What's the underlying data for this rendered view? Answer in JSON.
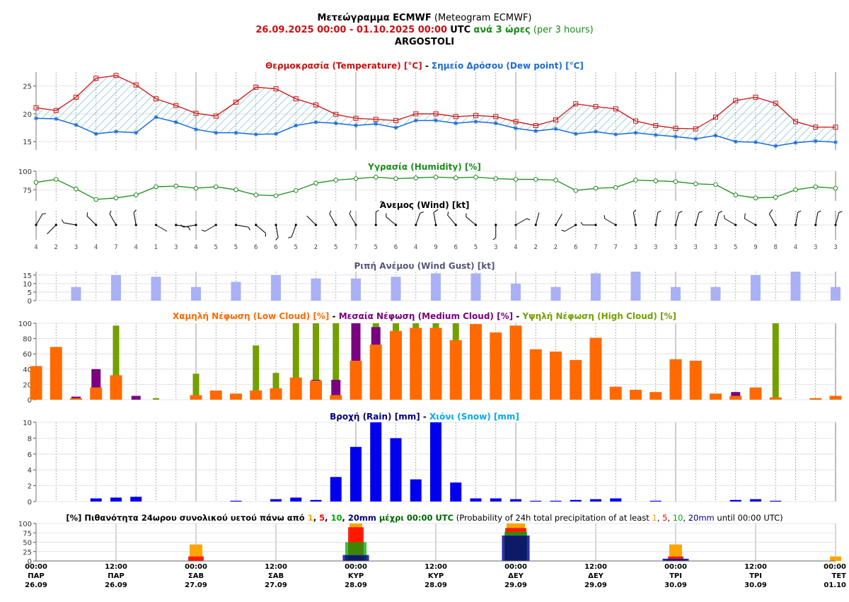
{
  "header": {
    "title_greek": "Μετεώγραμμα ECMWF",
    "title_english": "(Meteogram ECMWF)",
    "date_range": "26.09.2025 00:00 - 01.10.2025 00:00",
    "utc": "UTC",
    "interval_greek": "ανά 3 ώρες",
    "interval_english": "(per 3 hours)",
    "location": "ARGOSTOLI"
  },
  "colors": {
    "temperature": "#cc1111",
    "dew_point": "#1a6bd6",
    "humidity": "#1a8c1a",
    "gust": "#aab0f5",
    "low_cloud": "#ff6a00",
    "medium_cloud": "#7a0080",
    "high_cloud": "#73a000",
    "rain": "#0000ee",
    "snow": "#00aaee",
    "p1": "#ffa500",
    "p5": "#ff0000",
    "p10": "#00aa00",
    "p20": "#000080"
  },
  "chart_data": [
    {
      "type": "line",
      "panel": "temperature",
      "title_parts": [
        "Θερμοκρασία (Temperature) [°C]",
        " - ",
        "Σημείο Δρόσου (Dew point) [°C]"
      ],
      "ylim": [
        13.5,
        27.5
      ],
      "yticks": [
        15,
        20,
        25
      ],
      "series": [
        {
          "name": "Θερμοκρασία (Temperature) [°C]",
          "values": [
            21.1,
            20.6,
            23.0,
            26.4,
            26.9,
            25.2,
            22.7,
            21.5,
            20.1,
            19.6,
            22.1,
            24.8,
            24.5,
            22.7,
            21.6,
            19.9,
            19.2,
            19.0,
            18.8,
            20.0,
            20.0,
            19.5,
            19.7,
            19.5,
            18.6,
            17.9,
            18.9,
            21.8,
            21.3,
            20.9,
            18.7,
            17.9,
            17.4,
            17.3,
            19.4,
            22.4,
            23.0,
            21.9,
            18.6,
            17.6,
            17.6
          ]
        },
        {
          "name": "Σημείο Δρόσου (Dew point) [°C]",
          "values": [
            19.2,
            19.1,
            18.0,
            16.4,
            16.8,
            16.6,
            19.4,
            18.5,
            17.2,
            16.6,
            16.6,
            16.3,
            16.4,
            17.9,
            18.5,
            18.3,
            17.9,
            18.2,
            17.5,
            18.8,
            18.8,
            18.3,
            18.6,
            18.3,
            17.4,
            16.9,
            17.3,
            16.4,
            16.8,
            16.3,
            16.6,
            16.2,
            15.9,
            15.5,
            16.1,
            15.0,
            14.9,
            14.2,
            14.8,
            15.1,
            14.9
          ]
        }
      ]
    },
    {
      "type": "line",
      "panel": "humidity",
      "title": "Υγρασία (Humidity) [%]",
      "ylim": [
        60,
        100
      ],
      "yticks": [
        75,
        100
      ],
      "values": [
        85,
        89,
        76,
        62,
        64,
        68,
        79,
        80,
        77,
        79,
        75,
        68,
        67,
        74,
        84,
        88,
        90,
        92,
        90,
        91,
        92,
        91,
        92,
        90,
        89,
        89,
        88,
        74,
        77,
        78,
        88,
        87,
        86,
        83,
        82,
        68,
        64,
        65,
        75,
        79,
        77
      ]
    },
    {
      "type": "wind_barbs",
      "panel": "wind",
      "title": "Άνεμος (Wind) [kt]",
      "speed_labels": [
        "4",
        "2",
        "3",
        "4",
        "7",
        "4",
        "1",
        "3",
        "4",
        "5",
        "5",
        "6",
        "6",
        "5",
        "2",
        "5",
        "7",
        "5",
        "6",
        "4",
        "9",
        "6",
        "5",
        "3",
        "4",
        "2",
        "2",
        "6",
        "7",
        "7",
        "3",
        "3",
        "3",
        "3",
        "3",
        "5",
        "9",
        "8",
        "4",
        "3",
        "3"
      ],
      "directions_deg": [
        30,
        225,
        280,
        315,
        330,
        350,
        120,
        100,
        260,
        240,
        100,
        130,
        170,
        200,
        315,
        330,
        330,
        0,
        310,
        20,
        350,
        320,
        310,
        180,
        60,
        15,
        30,
        240,
        270,
        300,
        350,
        10,
        15,
        15,
        15,
        300,
        300,
        330,
        10,
        10,
        15
      ]
    },
    {
      "type": "bar",
      "panel": "gust",
      "title": "Ριπή Ανέμου (Wind Gust) [kt]",
      "ylim": [
        0,
        17
      ],
      "yticks": [
        0,
        5,
        10,
        15
      ],
      "bar_indices": [
        2,
        4,
        6,
        8,
        10,
        12,
        14,
        16,
        18,
        20,
        22,
        24,
        26,
        28,
        30,
        32,
        34,
        36,
        38,
        40
      ],
      "values": [
        8,
        15,
        14,
        8,
        11,
        15,
        13,
        13,
        14,
        16,
        16,
        10,
        8,
        16,
        17,
        8,
        8,
        15,
        17,
        8
      ]
    },
    {
      "type": "bar",
      "panel": "cloud",
      "title_parts": [
        "Χαμηλή Νέφωση (Low Cloud) [%]",
        " - ",
        "Μεσαία Νέφωση (Medium Cloud) [%]",
        " - ",
        "Υψηλή Νέφωση (High Cloud) [%]"
      ],
      "ylim": [
        0,
        100
      ],
      "yticks": [
        0,
        20,
        40,
        60,
        80,
        100
      ],
      "series": [
        {
          "name": "Υψηλή Νέφωση (High Cloud) [%]",
          "values": [
            0,
            0,
            0,
            0,
            97,
            0,
            2,
            0,
            34,
            0,
            0,
            71,
            35,
            100,
            100,
            100,
            0,
            100,
            100,
            100,
            100,
            100,
            0,
            0,
            0,
            0,
            0,
            0,
            0,
            0,
            0,
            0,
            0,
            0,
            0,
            0,
            0,
            100,
            0,
            0,
            0
          ]
        },
        {
          "name": "Μεσαία Νέφωση (Medium Cloud) [%]",
          "values": [
            0,
            0,
            4,
            40,
            0,
            5,
            0,
            0,
            0,
            0,
            0,
            0,
            0,
            0,
            26,
            26,
            100,
            95,
            0,
            0,
            0,
            0,
            0,
            0,
            0,
            0,
            0,
            0,
            0,
            0,
            0,
            0,
            0,
            0,
            0,
            10,
            0,
            2,
            0,
            0,
            0
          ]
        },
        {
          "name": "Χαμηλή Νέφωση (Low Cloud) [%]",
          "values": [
            44,
            69,
            2,
            16,
            32,
            0,
            0,
            0,
            6,
            12,
            8,
            12,
            15,
            29,
            25,
            6,
            51,
            72,
            90,
            94,
            94,
            78,
            99,
            88,
            97,
            66,
            63,
            52,
            81,
            17,
            13,
            10,
            53,
            51,
            8,
            5,
            16,
            3,
            0,
            2,
            5
          ]
        }
      ]
    },
    {
      "type": "bar",
      "panel": "rain",
      "title_parts": [
        "Βροχή (Rain) [mm]",
        " - ",
        "Χιόνι (Snow) [mm]"
      ],
      "ylim": [
        0,
        10
      ],
      "yticks": [
        0,
        2,
        4,
        6,
        8,
        10
      ],
      "series": [
        {
          "name": "Βροχή (Rain) [mm]",
          "values": [
            0,
            0,
            0,
            0.4,
            0.5,
            0.6,
            0,
            0,
            0,
            0,
            0.1,
            0,
            0.3,
            0.5,
            0.2,
            3.1,
            6.9,
            10,
            8,
            2.8,
            10,
            2.4,
            0.4,
            0.4,
            0.3,
            0.1,
            0.1,
            0.2,
            0.3,
            0.4,
            0,
            0.1,
            0,
            0,
            0,
            0.2,
            0.3,
            0.1,
            0,
            0,
            0
          ]
        },
        {
          "name": "Χιόνι (Snow) [mm]",
          "values": []
        }
      ]
    },
    {
      "type": "bar",
      "panel": "probability",
      "title_parts": [
        {
          "text": "[%] Πιθανότητα 24ωρου συνολικού υετού πάνω από ",
          "color": "#000000",
          "bold": true
        },
        {
          "text": "1",
          "color": "#ffa500",
          "bold": true
        },
        {
          "text": ", ",
          "color": "#000000",
          "bold": true
        },
        {
          "text": "5",
          "color": "#ff0000",
          "bold": true
        },
        {
          "text": ", ",
          "color": "#000000",
          "bold": true
        },
        {
          "text": "10",
          "color": "#00aa00",
          "bold": true
        },
        {
          "text": ", ",
          "color": "#000000",
          "bold": true
        },
        {
          "text": "20mm",
          "color": "#000080",
          "bold": true
        },
        {
          "text": " μέχρι 00:00 UTC",
          "color": "#006600",
          "bold": true
        },
        {
          "text": " (Probability of 24h total precipitation of at least ",
          "color": "#000000",
          "bold": false
        },
        {
          "text": "1",
          "color": "#ffa500",
          "bold": false
        },
        {
          "text": ", ",
          "color": "#000000",
          "bold": false
        },
        {
          "text": "5",
          "color": "#ff0000",
          "bold": false
        },
        {
          "text": ", ",
          "color": "#000000",
          "bold": false
        },
        {
          "text": "10",
          "color": "#00aa00",
          "bold": false
        },
        {
          "text": ", ",
          "color": "#000000",
          "bold": false
        },
        {
          "text": "20mm",
          "color": "#000080",
          "bold": false
        },
        {
          "text": " until 00:00 UTC)",
          "color": "#000000",
          "bold": false
        }
      ],
      "ylim": [
        0,
        100
      ],
      "yticks": [
        0,
        25,
        50,
        75,
        100
      ],
      "categories": [
        "27.09",
        "28.09",
        "29.09",
        "30.09",
        "01.10"
      ],
      "series": [
        {
          "name": "1",
          "values": [
            44,
            100,
            100,
            44,
            12
          ]
        },
        {
          "name": "5",
          "values": [
            12,
            90,
            88,
            12,
            0
          ]
        },
        {
          "name": "10",
          "values": [
            0,
            50,
            78,
            5,
            0
          ]
        },
        {
          "name": "20mm",
          "values": [
            0,
            15,
            67,
            5,
            0
          ]
        }
      ]
    }
  ],
  "time_axis": [
    {
      "time": "00:00",
      "day": "ΠΑΡ",
      "date": "26.09"
    },
    {
      "time": "12:00",
      "day": "ΠΑΡ",
      "date": "26.09"
    },
    {
      "time": "00:00",
      "day": "ΣΑΒ",
      "date": "27.09"
    },
    {
      "time": "12:00",
      "day": "ΣΑΒ",
      "date": "27.09"
    },
    {
      "time": "00:00",
      "day": "ΚΥΡ",
      "date": "28.09"
    },
    {
      "time": "12:00",
      "day": "ΚΥΡ",
      "date": "28.09"
    },
    {
      "time": "00:00",
      "day": "ΔΕΥ",
      "date": "29.09"
    },
    {
      "time": "12:00",
      "day": "ΔΕΥ",
      "date": "29.09"
    },
    {
      "time": "00:00",
      "day": "ΤΡΙ",
      "date": "30.09"
    },
    {
      "time": "12:00",
      "day": "ΤΡΙ",
      "date": "30.09"
    },
    {
      "time": "00:00",
      "day": "ΤΕΤ",
      "date": "01.10"
    }
  ]
}
